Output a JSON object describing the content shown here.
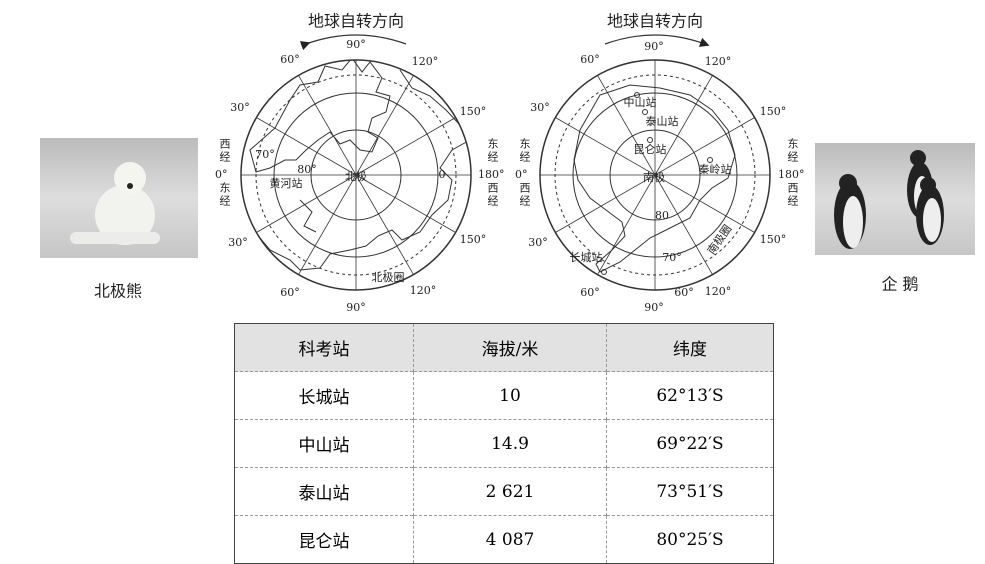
{
  "north_map": {
    "title": "地球自转方向",
    "pole": "北极",
    "station": "黄河站",
    "circle": "北极圈",
    "meridians": [
      "90°",
      "120°",
      "150°",
      "150°",
      "120°",
      "90°",
      "60°",
      "30°",
      "30°",
      "60°"
    ],
    "latitudes": [
      "70°",
      "80°"
    ],
    "zero": "0",
    "left_side": [
      "西经",
      "0°",
      "东经"
    ],
    "right_side": [
      "东经",
      "180°",
      "西经"
    ]
  },
  "south_map": {
    "title": "地球自转方向",
    "pole": "南极",
    "stations": [
      "中山站",
      "泰山站",
      "昆仑站",
      "秦岭站",
      "长城站"
    ],
    "circle": "南极圈",
    "meridians": [
      "90°",
      "120°",
      "150°",
      "150°",
      "120°",
      "90°",
      "60°",
      "30°",
      "30°",
      "60°"
    ],
    "latitudes": [
      "80",
      "70°",
      "60°"
    ],
    "left_side": [
      "东经",
      "0°",
      "西经"
    ],
    "right_side": [
      "东经",
      "180°",
      "西经"
    ]
  },
  "photos": {
    "polar_bear": "北极熊",
    "penguin": "企 鹅"
  },
  "table": {
    "header": [
      "科考站",
      "海拔/米",
      "纬度"
    ],
    "rows": [
      [
        "长城站",
        "10",
        "62°13′S"
      ],
      [
        "中山站",
        "14.9",
        "69°22′S"
      ],
      [
        "泰山站",
        "2 621",
        "73°51′S"
      ],
      [
        "昆仑站",
        "4 087",
        "80°25′S"
      ]
    ]
  }
}
